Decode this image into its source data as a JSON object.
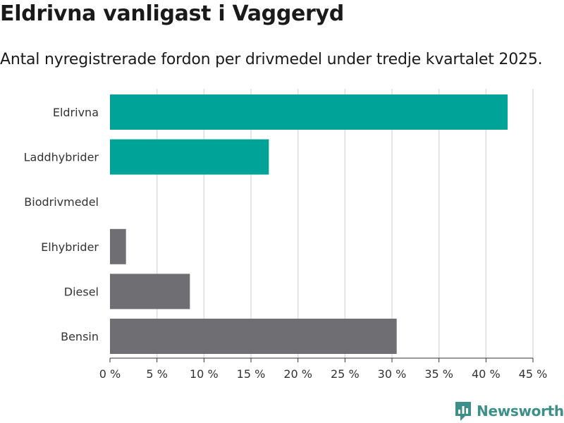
{
  "title": "Eldrivna vanligast i Vaggeryd",
  "subtitle": "Antal nyregistrerade fordon per drivmedel under tredje kvartalet 2025.",
  "brand": "Newsworthy",
  "colors": {
    "accent": "#00a397",
    "neutral": "#6e6e73"
  },
  "chart_data": {
    "type": "bar",
    "orientation": "horizontal",
    "title": "Eldrivna vanligast i Vaggeryd",
    "subtitle": "Antal nyregistrerade fordon per drivmedel under tredje kvartalet 2025.",
    "xlabel": "",
    "ylabel": "",
    "xlim": [
      0,
      45
    ],
    "ticks": [
      0,
      5,
      10,
      15,
      20,
      25,
      30,
      35,
      40,
      45
    ],
    "tick_labels": [
      "0 %",
      "5 %",
      "10 %",
      "15 %",
      "20 %",
      "25 %",
      "30 %",
      "35 %",
      "40 %",
      "45 %"
    ],
    "grid": true,
    "categories": [
      "Eldrivna",
      "Laddhybrider",
      "Biodrivmedel",
      "Elhybrider",
      "Diesel",
      "Bensin"
    ],
    "values": [
      42.3,
      16.9,
      0,
      1.7,
      8.5,
      30.5
    ],
    "bar_colors": [
      "#00a397",
      "#00a397",
      "#00a397",
      "#6e6e73",
      "#6e6e73",
      "#6e6e73"
    ]
  }
}
